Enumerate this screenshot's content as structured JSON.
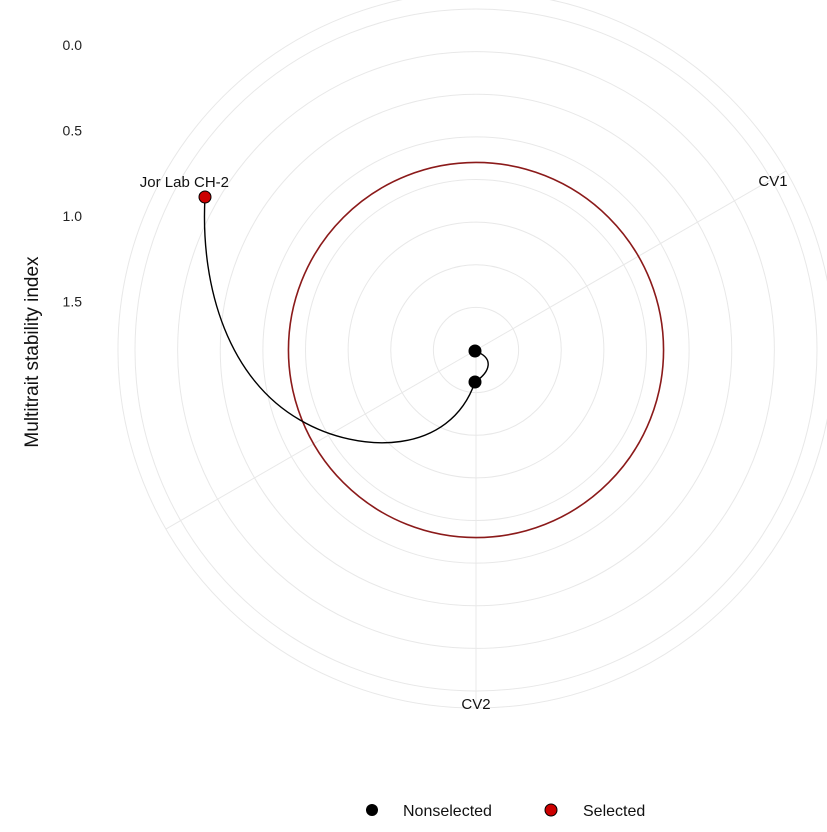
{
  "chart_data": {
    "type": "scatter",
    "coord": "polar",
    "ylabel": "Multitrait stability index",
    "radial_axis": {
      "reversed": true,
      "ticks": [
        "0.0",
        "0.5",
        "1.0",
        "1.5"
      ]
    },
    "angular_categories": [
      "CV1",
      "CV2"
    ],
    "points": [
      {
        "label": "Jor Lab CH-2",
        "mtsi": 0.9,
        "group": "Selected"
      },
      {
        "label": "",
        "mtsi": 1.85,
        "group": "Nonselected"
      },
      {
        "label": "",
        "mtsi": 2.02,
        "group": "Nonselected"
      }
    ],
    "selection_cutoff": 0.9,
    "legend": {
      "position": "bottom",
      "items": [
        {
          "name": "Nonselected",
          "color": "#000000"
        },
        {
          "name": "Selected",
          "color": "#cc0000"
        }
      ]
    },
    "colors": {
      "cutoff_circle": "#8b1a1a",
      "grid": "#e8e8e8",
      "path": "#000000"
    }
  }
}
